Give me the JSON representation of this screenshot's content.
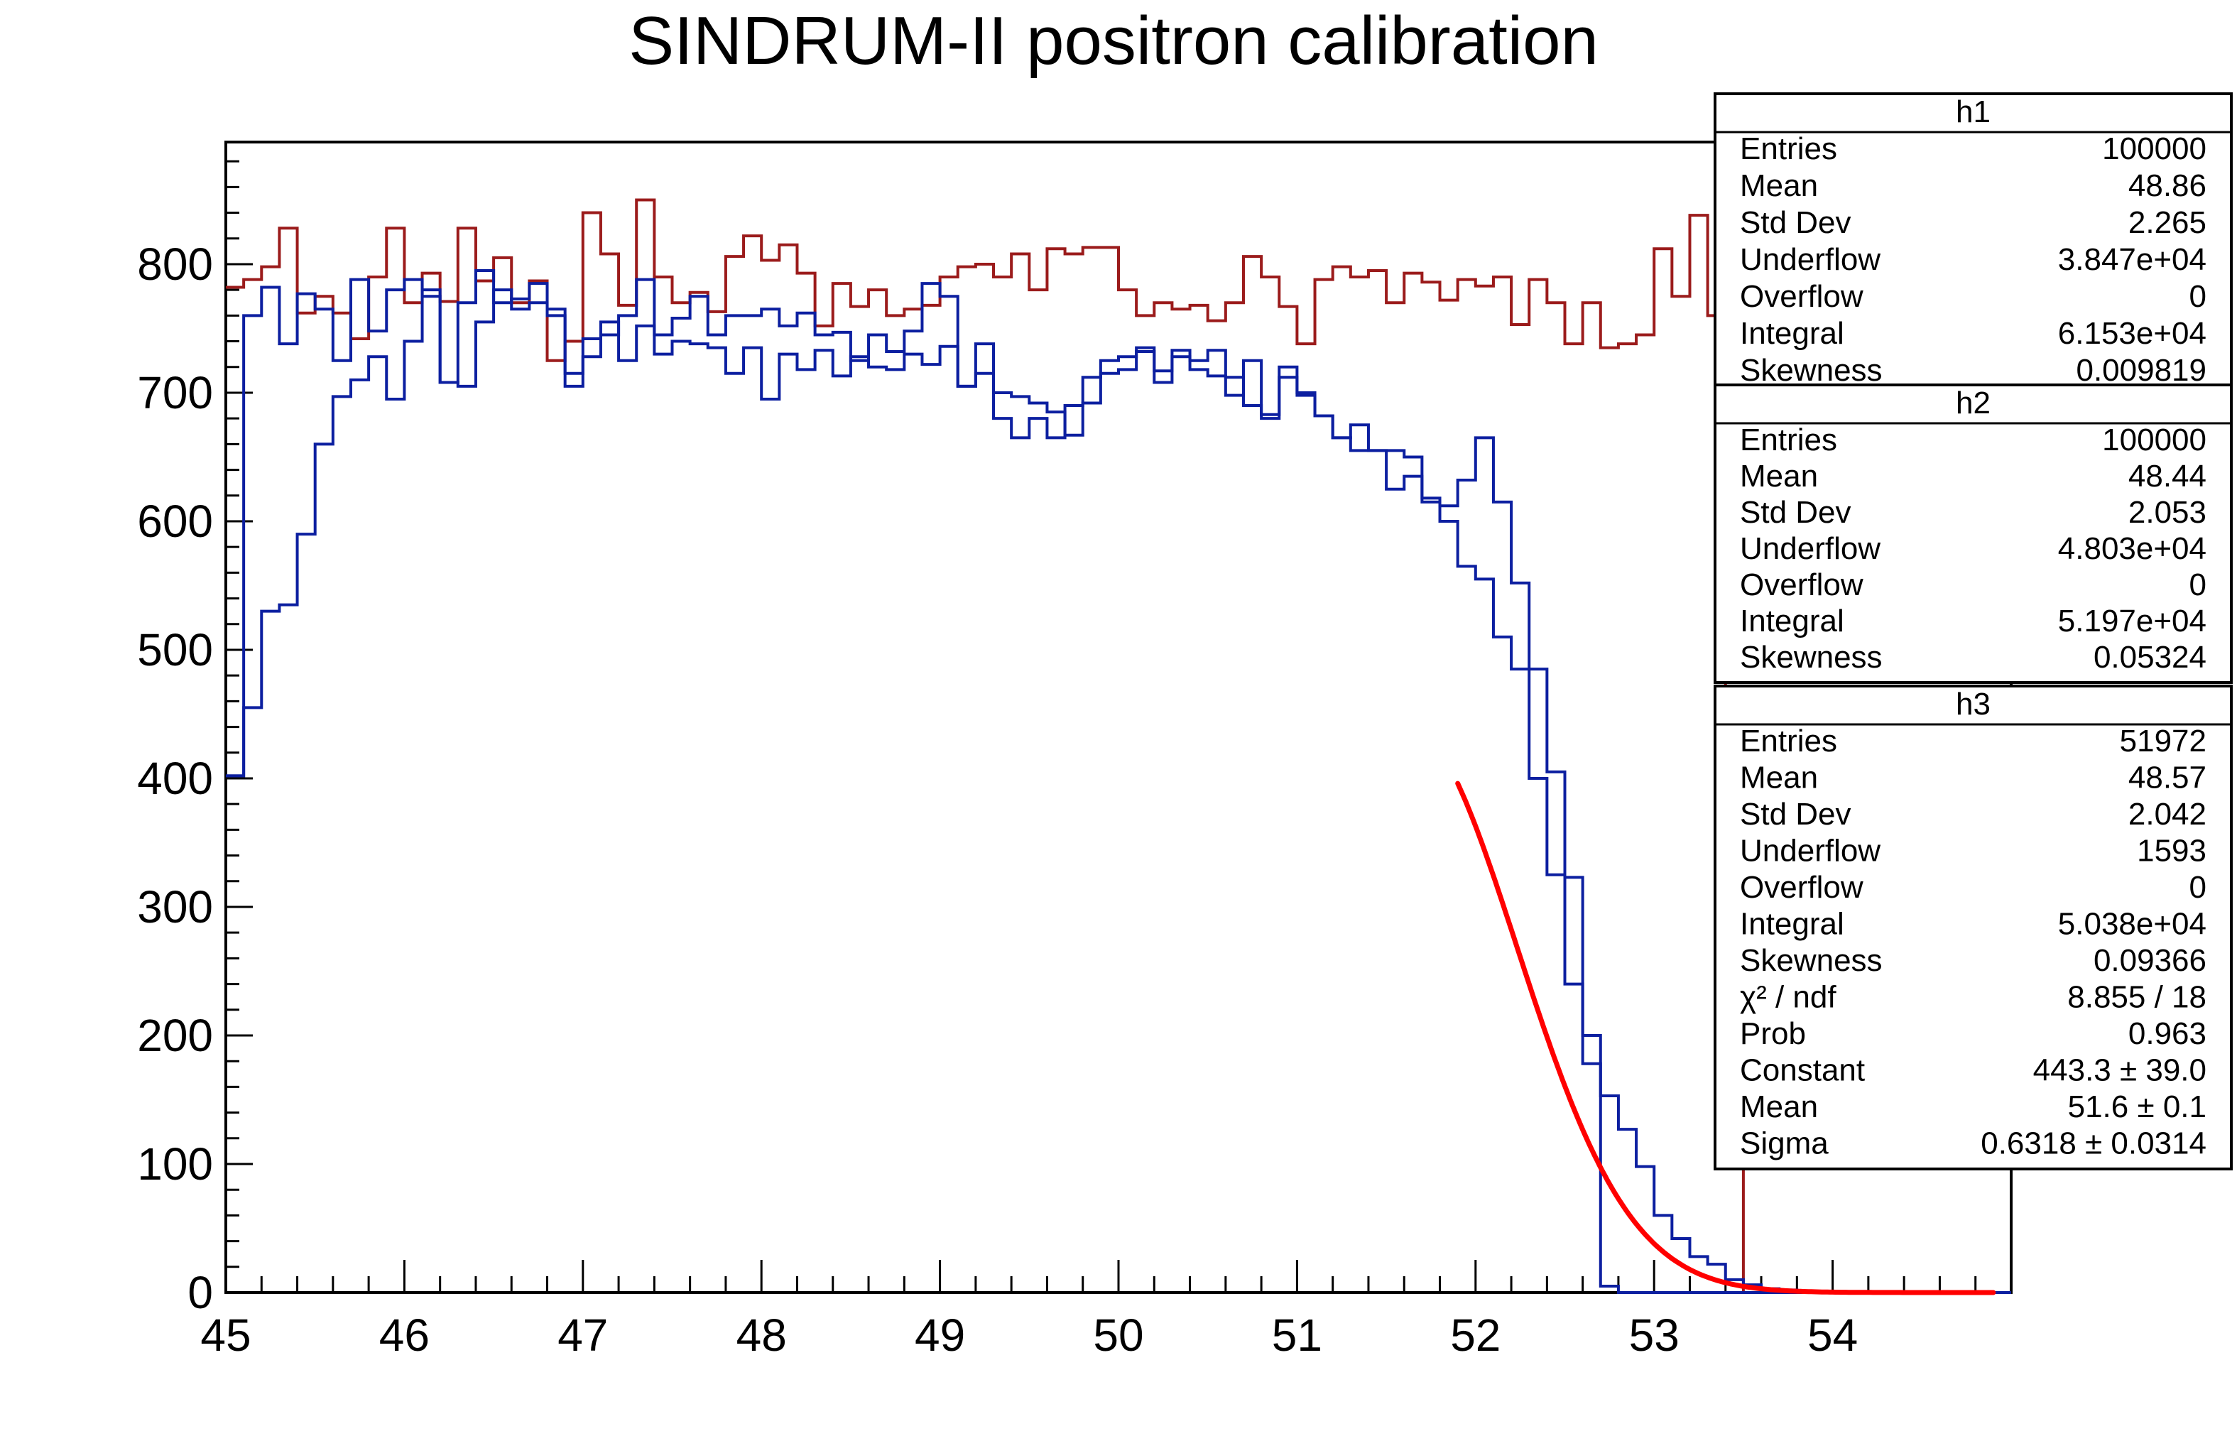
{
  "chart_data": {
    "type": "histogram",
    "title": "SINDRUM-II positron calibration",
    "xlabel": "",
    "ylabel": "",
    "xlim": [
      45,
      55
    ],
    "ylim": [
      0,
      895
    ],
    "x_ticks": [
      "45",
      "46",
      "47",
      "48",
      "49",
      "50",
      "51",
      "52",
      "53",
      "54"
    ],
    "y_ticks": [
      "0",
      "100",
      "200",
      "300",
      "400",
      "500",
      "600",
      "700",
      "800"
    ],
    "colors": {
      "h1": "#9b1b1b",
      "h2": "#0c1fa0",
      "h3": "#0c1fa0",
      "fit": "#ff0000"
    },
    "bin_width": 0.1,
    "series": [
      {
        "name": "h1",
        "x_start": 45.0,
        "values": [
          782,
          788,
          798,
          828,
          762,
          775,
          762,
          742,
          790,
          828,
          770,
          793,
          771,
          828,
          787,
          805,
          770,
          787,
          725,
          740,
          840,
          808,
          768,
          850,
          790,
          770,
          778,
          763,
          806,
          822,
          803,
          815,
          793,
          752,
          785,
          767,
          780,
          760,
          765,
          768,
          790,
          798,
          800,
          790,
          808,
          780,
          812,
          808,
          813,
          813,
          780,
          760,
          770,
          765,
          768,
          756,
          770,
          806,
          790,
          767,
          738,
          788,
          798,
          790,
          795,
          770,
          793,
          786,
          772,
          788,
          783,
          790,
          753,
          788,
          770,
          738,
          770,
          735,
          738,
          745,
          812,
          775,
          838,
          760,
          433,
          0,
          0,
          0,
          0,
          0,
          0,
          0,
          0,
          0,
          0,
          0,
          0,
          0,
          0,
          0
        ],
        "underflow": 38470,
        "overflow": 0
      },
      {
        "name": "h2",
        "x_start": 45.0,
        "values": [
          402,
          455,
          530,
          535,
          590,
          660,
          697,
          710,
          728,
          695,
          740,
          780,
          708,
          705,
          755,
          780,
          765,
          770,
          760,
          715,
          728,
          755,
          725,
          752,
          730,
          740,
          738,
          735,
          715,
          735,
          695,
          730,
          718,
          733,
          713,
          728,
          720,
          718,
          730,
          722,
          736,
          705,
          715,
          680,
          665,
          680,
          665,
          690,
          712,
          715,
          718,
          732,
          717,
          728,
          718,
          713,
          712,
          690,
          683,
          720,
          698,
          682,
          665,
          675,
          655,
          655,
          650,
          615,
          600,
          565,
          555,
          510,
          485,
          485,
          405,
          323,
          178,
          5,
          0,
          0,
          0,
          0,
          0,
          0,
          0,
          0,
          0,
          0,
          0,
          0,
          0,
          0,
          0,
          0,
          0,
          0,
          0,
          0,
          0,
          0
        ],
        "underflow": 48030,
        "overflow": 0
      },
      {
        "name": "h3",
        "x_start": 45.0,
        "values": [
          402,
          760,
          782,
          738,
          777,
          765,
          725,
          788,
          748,
          780,
          788,
          775,
          708,
          770,
          795,
          770,
          773,
          785,
          765,
          705,
          742,
          745,
          760,
          788,
          745,
          758,
          775,
          745,
          760,
          760,
          765,
          752,
          762,
          745,
          747,
          725,
          745,
          732,
          748,
          785,
          775,
          705,
          738,
          700,
          697,
          692,
          685,
          667,
          692,
          725,
          728,
          735,
          708,
          733,
          725,
          733,
          698,
          725,
          680,
          712,
          700,
          682,
          665,
          655,
          655,
          625,
          635,
          618,
          612,
          632,
          665,
          615,
          552,
          400,
          325,
          240,
          200,
          153,
          127,
          98,
          60,
          42,
          28,
          22,
          10,
          6,
          3,
          2,
          1,
          0,
          0,
          0,
          0,
          0,
          0,
          0,
          0,
          0,
          0,
          0
        ],
        "underflow": 1593,
        "overflow": 0
      }
    ],
    "fit": {
      "function": "gaus",
      "series": "h3",
      "range": [
        51.9,
        54.9
      ],
      "constant": 443.3,
      "mean": 51.6,
      "sigma": 0.6318
    }
  },
  "stats_boxes": [
    {
      "name": "h1",
      "rows": [
        {
          "label": "Entries",
          "value": "100000"
        },
        {
          "label": "Mean",
          "value": "48.86"
        },
        {
          "label": "Std Dev",
          "value": "2.265"
        },
        {
          "label": "Underflow",
          "value": "3.847e+04"
        },
        {
          "label": "Overflow",
          "value": "0"
        },
        {
          "label": "Integral",
          "value": "6.153e+04"
        },
        {
          "label": "Skewness",
          "value": "0.009819"
        }
      ]
    },
    {
      "name": "h2",
      "rows": [
        {
          "label": "Entries",
          "value": "100000"
        },
        {
          "label": "Mean",
          "value": "48.44"
        },
        {
          "label": "Std Dev",
          "value": "2.053"
        },
        {
          "label": "Underflow",
          "value": "4.803e+04"
        },
        {
          "label": "Overflow",
          "value": "0"
        },
        {
          "label": "Integral",
          "value": "5.197e+04"
        },
        {
          "label": "Skewness",
          "value": "0.05324"
        }
      ]
    },
    {
      "name": "h3",
      "rows": [
        {
          "label": "Entries",
          "value": "51972"
        },
        {
          "label": "Mean",
          "value": "48.57"
        },
        {
          "label": "Std Dev",
          "value": "2.042"
        },
        {
          "label": "Underflow",
          "value": "1593"
        },
        {
          "label": "Overflow",
          "value": "0"
        },
        {
          "label": "Integral",
          "value": "5.038e+04"
        },
        {
          "label": "Skewness",
          "value": "0.09366"
        },
        {
          "label": "χ² / ndf",
          "value": "8.855 / 18"
        },
        {
          "label": "Prob",
          "value": "0.963"
        },
        {
          "label": "Constant",
          "value": "443.3 ± 39.0"
        },
        {
          "label": "Mean",
          "value": "51.6 ± 0.1"
        },
        {
          "label": "Sigma",
          "value": "0.6318 ± 0.0314"
        }
      ]
    }
  ]
}
